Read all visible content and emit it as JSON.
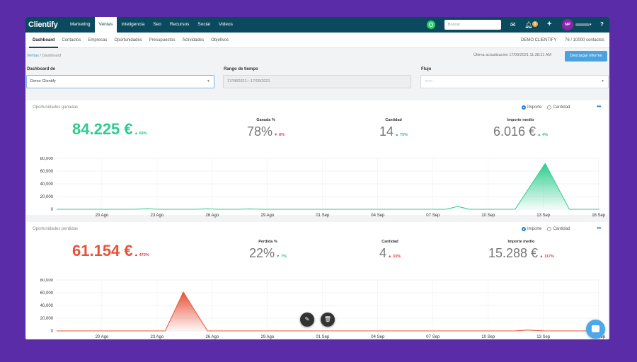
{
  "brand": {
    "logo": "Clientify"
  },
  "topnav": {
    "items": [
      "Marketing",
      "Ventas",
      "Inteligencia",
      "Seo",
      "Recursos",
      "Social",
      "Videos"
    ],
    "active": "Ventas",
    "search_placeholder": "Buscar",
    "notif_count": "6",
    "avatar_initials": "NP"
  },
  "subnav": {
    "items": [
      "Dashboard",
      "Contactos",
      "Empresas",
      "Oportunidades",
      "Presupuestos",
      "Actividades",
      "Objetivos"
    ],
    "active": "Dashboard",
    "account": "DEMO CLIENTIFY",
    "contacts": "76 / 10000 contactos"
  },
  "breadcrumb": {
    "root": "Ventas",
    "sep": "/",
    "current": "Dashboard"
  },
  "toolbar": {
    "updated": "Última actualización 17/09/2021 11:38:21 AM",
    "download_label": "Descargar informe"
  },
  "filters": {
    "dashboard_label": "Dashboard de",
    "dashboard_value": "Demo Clientify",
    "range_label": "Rango de tiempo",
    "range_value": "17/08/2021—17/09/2021",
    "flow_label": "Flujo",
    "flow_value": "------"
  },
  "won": {
    "title": "Oportunidades ganadas",
    "radio_amount": "Importe",
    "radio_qty": "Cantidad",
    "total": "84.225 €",
    "total_change": "69%",
    "pct_label": "Ganada %",
    "pct": "78%",
    "pct_change": "8%",
    "qty_label": "Cantidad",
    "qty": "14",
    "qty_change": "75%",
    "avg_label": "Importe medio",
    "avg": "6.016 €",
    "avg_change": "4%"
  },
  "lost": {
    "title": "Oportunidades perdidas",
    "radio_amount": "Importe",
    "radio_qty": "Cantidad",
    "total": "61.154 €",
    "total_change": "470%",
    "pct_label": "Perdida %",
    "pct": "22%",
    "pct_change": "7%",
    "qty_label": "Cantidad",
    "qty": "4",
    "qty_change": "33%",
    "avg_label": "Importe medio",
    "avg": "15.288 €",
    "avg_change": "117%"
  },
  "colors": {
    "won": "#2ecc8f",
    "lost": "#e8523a"
  },
  "chart_data": [
    {
      "type": "area",
      "x": [
        "20 Ago",
        "23 Ago",
        "26 Ago",
        "29 Ago",
        "01 Sep",
        "04 Sep",
        "07 Sep",
        "10 Sep",
        "13 Sep",
        "16 Sep"
      ],
      "y_ticks": [
        "80,000",
        "60,000",
        "40,000",
        "20,000",
        "0"
      ],
      "ylim": [
        0,
        80000
      ],
      "grid": true,
      "series": [
        {
          "points": [
            [
              0,
              0
            ],
            [
              2.6,
              0
            ],
            [
              3,
              1000
            ],
            [
              3.4,
              0
            ],
            [
              4.6,
              0
            ],
            [
              5,
              700
            ],
            [
              5.4,
              0
            ],
            [
              6,
              0
            ],
            [
              6.4,
              600
            ],
            [
              6.8,
              0
            ],
            [
              12.2,
              0
            ],
            [
              12.9,
              0
            ],
            [
              13.3,
              4500
            ],
            [
              13.7,
              0
            ],
            [
              14.7,
              0
            ],
            [
              15.2,
              0
            ],
            [
              16.2,
              72000
            ],
            [
              17,
              0
            ],
            [
              18,
              0
            ]
          ]
        }
      ]
    },
    {
      "type": "area",
      "x": [
        "20 Ago",
        "23 Ago",
        "26 Ago",
        "29 Ago",
        "01 Sep",
        "04 Sep",
        "07 Sep",
        "10 Sep",
        "13 Sep",
        "16 Sep"
      ],
      "y_ticks": [
        "80,000",
        "60,000",
        "40,000",
        "20,000",
        "0"
      ],
      "ylim": [
        0,
        80000
      ],
      "grid": true,
      "series": [
        {
          "points": [
            [
              0,
              0
            ],
            [
              2.6,
              0
            ],
            [
              3,
              0
            ],
            [
              3.6,
              0
            ],
            [
              4.2,
              61000
            ],
            [
              5,
              0
            ],
            [
              6,
              0
            ],
            [
              15.2,
              0
            ],
            [
              15.6,
              1500
            ],
            [
              16.2,
              0
            ],
            [
              18,
              0
            ]
          ]
        }
      ]
    }
  ]
}
